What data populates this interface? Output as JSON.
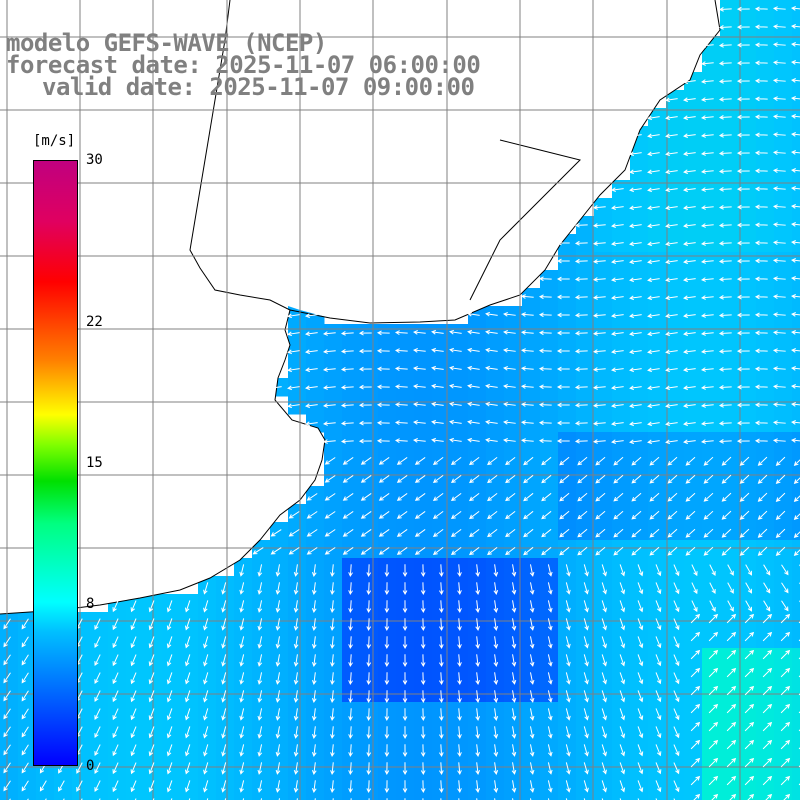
{
  "title": {
    "line1": "modelo GEFS-WAVE (NCEP)",
    "line2": "forecast date: 2025-11-07 06:00:00",
    "line3": "valid date: 2025-11-07 09:00:00"
  },
  "colorbar": {
    "unit": "[m/s]",
    "ticks": [
      {
        "label": "30",
        "value": 30
      },
      {
        "label": "22",
        "value": 22
      },
      {
        "label": "15",
        "value": 15
      },
      {
        "label": "8",
        "value": 8
      },
      {
        "label": "0",
        "value": 0
      }
    ],
    "range": [
      0,
      30
    ]
  },
  "colors": {
    "land": "#ffffff",
    "coast": "#000000",
    "grid": "#808080",
    "arrows": "#ffffff",
    "low_speed": "#0060ff",
    "mid_speed": "#00c0ff",
    "high_speed": "#00ffd0"
  },
  "map": {
    "field": "wind speed and direction",
    "region": "South Atlantic coast / Rio de la Plata",
    "gridlines": true
  }
}
